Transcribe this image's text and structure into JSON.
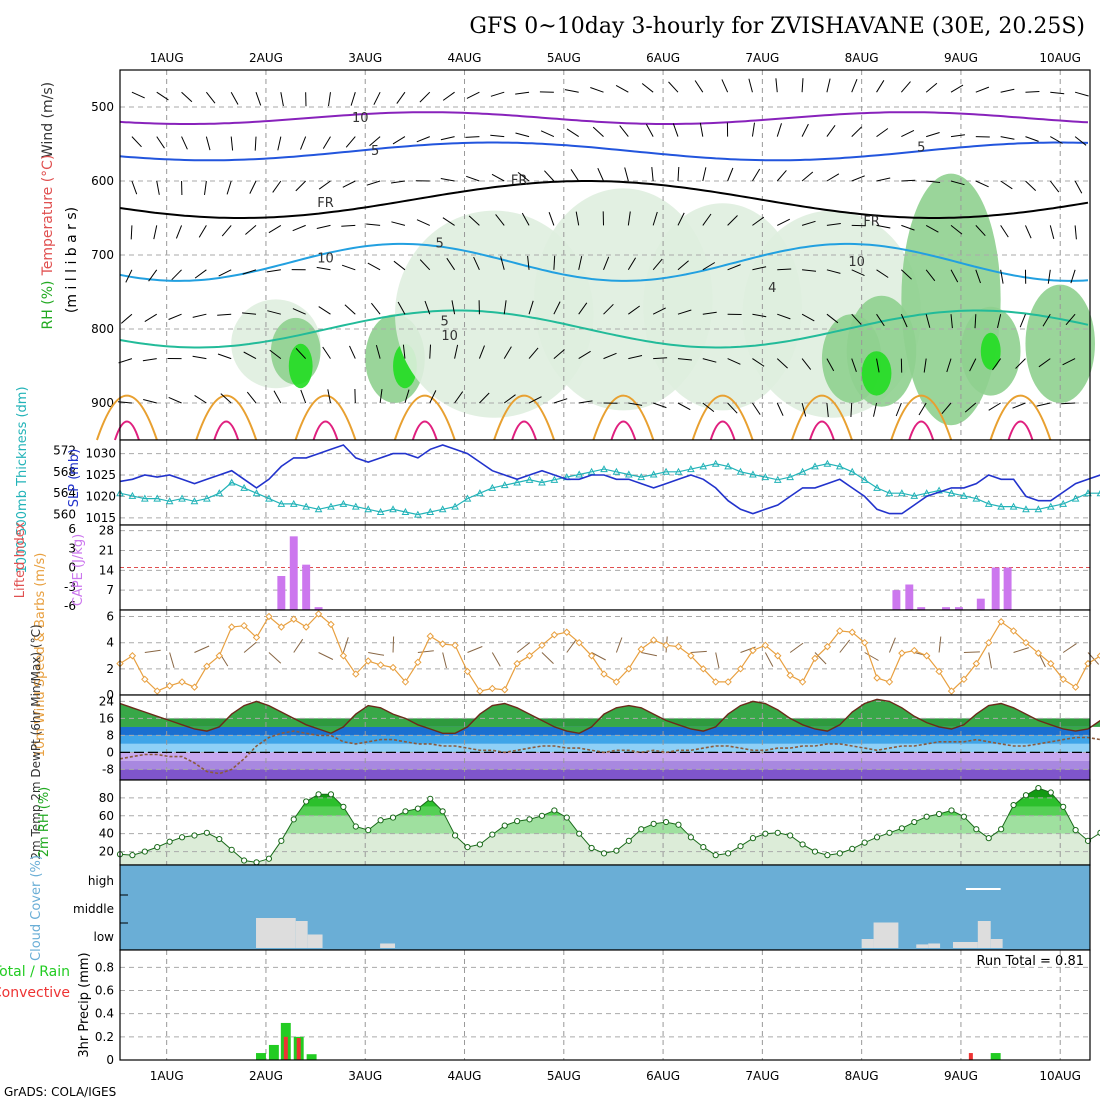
{
  "chart_data": {
    "type": "meteogram",
    "title": "GFS 0~10day 3-hourly for ZVISHAVANE (30E, 20.25S)",
    "footer": "GrADS: COLA/IGES",
    "dates": [
      "1AUG",
      "2AUG",
      "3AUG",
      "4AUG",
      "5AUG",
      "6AUG",
      "7AUG",
      "8AUG",
      "9AUG",
      "10AUG"
    ],
    "time_axis": {
      "start_day": 0.53,
      "end_day": 10.3,
      "step_hours": 3
    },
    "colors": {
      "rh_light": "#dfeedf",
      "rh_mid": "#8fd08f",
      "rh_high": "#22dd22",
      "temp_warm": "#e8a030",
      "temp_hot": "#e0207f",
      "wind_line": "#000000",
      "slp": "#2233cc",
      "thick": "#22b3b8",
      "cape": "#cc77ee",
      "li_line": "#e05050",
      "spd": "#e8a040",
      "cloud_bg": "#6aaed6",
      "cloud": "#dddddd",
      "precip_total": "#22cc22",
      "precip_conv": "#ee3333"
    },
    "panels": {
      "upper": {
        "ylabel_parts": [
          "Wind (m/s)",
          "Temperature (°C)",
          "RH (%)"
        ],
        "ylabel_units": "(m i l l i b a r s)",
        "yticks": [
          500,
          600,
          700,
          800,
          900
        ],
        "ylim": [
          450,
          950
        ],
        "contour_labels": [
          "10",
          "5",
          "FR",
          "FR",
          "FR",
          "5",
          "5",
          "10",
          "10",
          "4",
          "5",
          "10"
        ]
      },
      "slp_thickness": {
        "left_label": "1000-500mb Thickness (dm)",
        "right_label": "SLP (mb)",
        "thickness_ticks": [
          560,
          564,
          568,
          572
        ],
        "thickness_range": [
          559,
          573
        ],
        "slp_ticks": [
          1015,
          1020,
          1025,
          1030
        ],
        "slp_range": [
          1014.5,
          1032
        ],
        "slp": [
          1023.5,
          1024,
          1025,
          1024.5,
          1025,
          1024,
          1023,
          1024,
          1025,
          1026,
          1024,
          1022,
          1024,
          1027,
          1029,
          1029,
          1030,
          1031,
          1032,
          1029,
          1028,
          1029,
          1030,
          1030,
          1029,
          1031,
          1032,
          1031,
          1030,
          1028,
          1026,
          1025,
          1024,
          1025,
          1026,
          1025,
          1024,
          1024,
          1025,
          1025,
          1024,
          1024,
          1023,
          1022,
          1023,
          1024,
          1025,
          1024,
          1022,
          1019,
          1017,
          1016,
          1017,
          1018,
          1020,
          1022,
          1022,
          1023,
          1024,
          1022,
          1020,
          1017,
          1016,
          1016,
          1018,
          1020,
          1021,
          1022,
          1022,
          1023,
          1025,
          1024,
          1024,
          1020,
          1019,
          1019,
          1021,
          1023,
          1024,
          1025,
          1025,
          1026,
          1026,
          1026,
          1025,
          1025,
          1024,
          1023,
          1023,
          1022,
          1023,
          1024,
          1024,
          1024,
          1024,
          1023,
          1023,
          1022,
          1022,
          1022,
          1023,
          1023,
          1023,
          1024,
          1025
        ],
        "thickness": [
          564,
          563.5,
          563,
          563,
          562.5,
          563,
          562.5,
          563,
          564,
          566,
          565,
          564,
          563,
          562,
          562,
          561.5,
          561,
          561.5,
          562,
          561.5,
          561,
          560.5,
          561,
          560.5,
          560,
          560.5,
          561,
          561.5,
          563,
          564,
          565,
          565.5,
          566,
          566.5,
          566,
          566.5,
          567,
          567.5,
          568,
          568.5,
          568,
          567.5,
          567,
          567.5,
          568,
          568,
          568.5,
          569,
          569.5,
          569,
          568,
          567.5,
          567,
          566.5,
          567,
          568,
          569,
          569.5,
          569,
          568,
          566.5,
          565,
          564,
          564,
          563.5,
          564,
          564.5,
          564,
          563.5,
          563,
          562,
          561.5,
          561.5,
          561,
          561,
          561.5,
          562,
          563,
          564,
          564,
          563.5,
          563,
          562,
          561.5,
          561.5,
          562,
          563,
          563.5,
          564,
          563.5,
          563,
          562.5,
          562.5,
          563,
          563.5,
          564,
          564,
          564.5,
          564,
          563,
          563,
          563.5,
          563
        ]
      },
      "cape_li": {
        "left_label": "Lifted Index",
        "right_label": "CAPE (J/kg)",
        "li_ticks": [
          6,
          3,
          0,
          -3,
          -6
        ],
        "cape_ticks": [
          7,
          14,
          21,
          28
        ],
        "cape_range": [
          0,
          30
        ],
        "li_line_value": 0,
        "cape": [
          0,
          0,
          0,
          0,
          0,
          0,
          0,
          0,
          0,
          0,
          0,
          0,
          0,
          12,
          26,
          16,
          1,
          0,
          0,
          0,
          0,
          0,
          0,
          0,
          0,
          0,
          0,
          0,
          0,
          0,
          0,
          0,
          0,
          0,
          0,
          0,
          0,
          0,
          0,
          0,
          0,
          0,
          0,
          0,
          0,
          0,
          0,
          0,
          0,
          0,
          0,
          0,
          0,
          0,
          0,
          0,
          0,
          0,
          0,
          0,
          0,
          0,
          0,
          0,
          0,
          0,
          0,
          0,
          0,
          0,
          0,
          0,
          0,
          0,
          0,
          0,
          0,
          0,
          0,
          0,
          0,
          0,
          0,
          0,
          0,
          0,
          0,
          0,
          0,
          0,
          0,
          0,
          0,
          0,
          0,
          0,
          0,
          0,
          0,
          0,
          0,
          0,
          0,
          0,
          0
        ],
        "cape_late": [
          {
            "day": 8.35,
            "v": 7
          },
          {
            "day": 8.48,
            "v": 9
          },
          {
            "day": 8.6,
            "v": 1
          },
          {
            "day": 8.85,
            "v": 1
          },
          {
            "day": 8.98,
            "v": 1
          },
          {
            "day": 9.2,
            "v": 4
          },
          {
            "day": 9.35,
            "v": 15
          },
          {
            "day": 9.47,
            "v": 15
          }
        ]
      },
      "wind10": {
        "label": "10m Wind Speed & Barbs (m/s)",
        "yticks": [
          0,
          2,
          4,
          6
        ],
        "ylim": [
          0,
          6.5
        ],
        "speed": [
          2.4,
          3.0,
          1.2,
          0.3,
          0.7,
          1.0,
          0.6,
          2.2,
          3.0,
          5.2,
          5.3,
          4.4,
          6.0,
          5.2,
          5.8,
          5.2,
          6.2,
          5.4,
          3.0,
          1.6,
          2.6,
          2.3,
          2.1,
          1.0,
          2.5,
          4.5,
          3.9,
          3.8,
          1.8,
          0.3,
          0.5,
          0.4,
          2.4,
          3.0,
          3.8,
          4.6,
          4.8,
          4.0,
          3.0,
          1.6,
          1.0,
          2.0,
          3.5,
          4.2,
          3.8,
          3.7,
          3.0,
          2.0,
          1.0,
          1.0,
          2.0,
          3.4,
          3.8,
          3.0,
          1.5,
          1.0,
          2.8,
          3.7,
          4.9,
          4.8,
          4.0,
          1.3,
          1.0,
          3.2,
          3.4,
          3.0,
          1.8,
          0.3,
          1.2,
          2.4,
          4.0,
          5.6,
          4.9,
          4.0,
          3.2,
          2.4,
          1.2,
          0.6,
          2.4,
          3.0,
          3.6,
          4.4,
          4.8,
          5.5,
          5.1,
          3.7,
          2.2,
          3.4,
          3.2,
          2.4,
          1.8,
          2.6,
          3.7,
          4.5,
          5.3,
          5.0,
          4.8,
          6.1,
          5.6,
          3.5,
          2.0,
          1.6,
          1.4,
          0.7,
          2.4
        ]
      },
      "temp2m": {
        "label": "2m Temp 2m DewPt (6hr Min/Max) (°C)",
        "yticks": [
          -8,
          0,
          8,
          16,
          24
        ],
        "ylim": [
          -13,
          27
        ],
        "temp": [
          23,
          21,
          19,
          17,
          15,
          13,
          11,
          10,
          12,
          18,
          22,
          24,
          22,
          19,
          16,
          13,
          11,
          9,
          12,
          18,
          22,
          21,
          18,
          16,
          13,
          11,
          9,
          9,
          12,
          18,
          22,
          23,
          21,
          18,
          15,
          12,
          10,
          9,
          12,
          18,
          21,
          22,
          21,
          18,
          15,
          13,
          11,
          10,
          12,
          18,
          22,
          24,
          23,
          20,
          16,
          13,
          11,
          10,
          13,
          19,
          23,
          25,
          24,
          21,
          17,
          14,
          12,
          11,
          13,
          18,
          22,
          23,
          21,
          18,
          15,
          13,
          11,
          10,
          11,
          15,
          19,
          21,
          20,
          17,
          14,
          12,
          10,
          9,
          10,
          14,
          18,
          20,
          19,
          17,
          14,
          12,
          10,
          9,
          10,
          13,
          16,
          19,
          18,
          16,
          12
        ],
        "dew": [
          -3,
          -2,
          -1,
          -1,
          -2,
          -2,
          -5,
          -9,
          -10,
          -8,
          -3,
          3,
          7,
          9,
          10,
          9,
          8,
          8,
          5,
          4,
          5,
          6,
          6,
          5,
          4,
          4,
          3,
          3,
          2,
          1,
          1,
          0,
          1,
          2,
          3,
          3,
          2,
          2,
          1,
          0,
          1,
          1,
          0,
          1,
          0,
          1,
          1,
          2,
          3,
          3,
          2,
          1,
          1,
          2,
          2,
          3,
          3,
          4,
          4,
          3,
          2,
          1,
          2,
          3,
          3,
          4,
          5,
          5,
          5,
          6,
          5,
          4,
          3,
          3,
          4,
          5,
          6,
          7,
          7,
          6,
          6,
          5,
          5,
          6,
          7,
          8,
          8,
          9,
          9,
          8,
          9,
          9,
          9,
          8,
          8,
          7,
          7,
          7,
          6,
          6,
          7,
          7,
          7,
          7,
          8
        ]
      },
      "rh2m": {
        "label": "2m RH (%)",
        "yticks": [
          20,
          40,
          60,
          80
        ],
        "ylim": [
          5,
          100
        ],
        "rh": [
          17,
          16,
          20,
          25,
          31,
          36,
          38,
          41,
          34,
          22,
          10,
          8,
          12,
          32,
          56,
          76,
          84,
          84,
          70,
          48,
          44,
          55,
          58,
          65,
          68,
          79,
          65,
          38,
          25,
          28,
          39,
          49,
          54,
          56,
          60,
          66,
          58,
          40,
          24,
          18,
          21,
          32,
          45,
          51,
          53,
          50,
          36,
          25,
          16,
          18,
          26,
          35,
          40,
          41,
          38,
          28,
          20,
          16,
          18,
          23,
          30,
          36,
          41,
          46,
          53,
          59,
          62,
          66,
          59,
          45,
          35,
          45,
          72,
          83,
          91,
          86,
          70,
          44,
          32,
          41,
          68,
          82,
          90,
          85,
          63,
          45,
          30,
          40,
          56,
          66,
          73,
          74,
          70,
          66,
          59,
          46,
          40,
          43,
          58,
          68,
          73,
          76,
          81,
          80,
          76
        ]
      },
      "cloud": {
        "label": "Cloud Cover (%)",
        "levels": [
          "high",
          "middle",
          "low"
        ],
        "low_blocks": [
          {
            "day": 1.9,
            "w": 0.4,
            "v": 1
          },
          {
            "day": 2.3,
            "w": 0.12,
            "v": 0.9
          },
          {
            "day": 2.42,
            "w": 0.15,
            "v": 0.45
          },
          {
            "day": 3.15,
            "w": 0.15,
            "v": 0.15
          },
          {
            "day": 8.0,
            "w": 0.12,
            "v": 0.3
          },
          {
            "day": 8.12,
            "w": 0.25,
            "v": 0.85
          },
          {
            "day": 8.55,
            "w": 0.12,
            "v": 0.12
          },
          {
            "day": 8.67,
            "w": 0.12,
            "v": 0.15
          },
          {
            "day": 8.92,
            "w": 0.25,
            "v": 0.2
          },
          {
            "day": 9.17,
            "w": 0.13,
            "v": 0.9
          },
          {
            "day": 9.3,
            "w": 0.12,
            "v": 0.3
          }
        ],
        "high_marks": [
          {
            "day": 9.05,
            "w": 0.35
          }
        ]
      },
      "precip": {
        "label": "3hr Precip (mm)",
        "legend": [
          "Total / Rain",
          "Convective"
        ],
        "run_total_label": "Run Total = 0.81",
        "yticks": [
          0,
          0.2,
          0.4,
          0.6,
          0.8
        ],
        "ylim": [
          0,
          0.95
        ],
        "total": [
          {
            "day": 1.95,
            "v": 0.06
          },
          {
            "day": 2.08,
            "v": 0.13
          },
          {
            "day": 2.2,
            "v": 0.32
          },
          {
            "day": 2.33,
            "v": 0.2
          },
          {
            "day": 2.46,
            "v": 0.05
          },
          {
            "day": 9.35,
            "v": 0.06
          }
        ],
        "conv": [
          {
            "day": 2.2,
            "v": 0.2
          },
          {
            "day": 2.33,
            "v": 0.19
          },
          {
            "day": 9.1,
            "v": 0.06
          }
        ]
      }
    }
  }
}
